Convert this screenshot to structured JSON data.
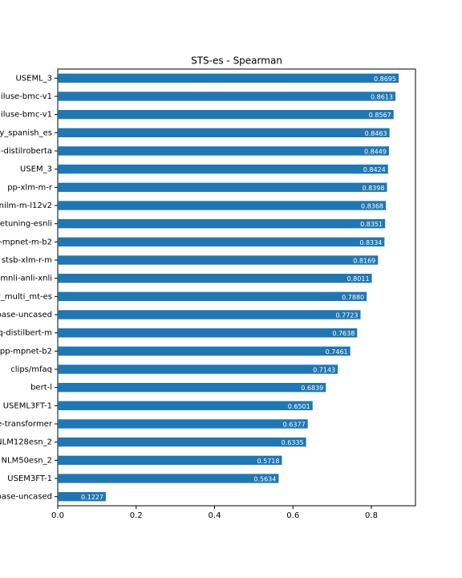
{
  "chart_data": {
    "type": "barh",
    "title": "STS-es - Spearman",
    "categories": [
      "USEML_3",
      "iluse-bmc-v1",
      "iluse-bmc-v1",
      "y_spanish_es",
      "-distilroberta",
      "USEM_3",
      "pp-xlm-m-r",
      "nilm-m-l12v2",
      "etuning-esnli",
      "-mpnet-m-b2",
      "stsb-xlm-r-m",
      "mnli-anli-xnli",
      "y_multi_mt-es",
      "base-uncased",
      "q-distilbert-m",
      "pp-mpnet-b2",
      "clips/mfaq",
      "bert-l",
      "USEML3FT-1",
      "e-transformer",
      "NLM128esn_2",
      "NLM50esn_2",
      "USEM3FT-1",
      "base-uncased"
    ],
    "values": [
      0.8695,
      0.8613,
      0.8567,
      0.8463,
      0.8449,
      0.8424,
      0.8398,
      0.8368,
      0.8351,
      0.8334,
      0.8169,
      0.8011,
      0.788,
      0.7723,
      0.7638,
      0.7461,
      0.7143,
      0.6839,
      0.6501,
      0.6377,
      0.6335,
      0.5718,
      0.5634,
      0.1227
    ],
    "value_labels": [
      "0.8695",
      "0.8613",
      "0.8567",
      "0.8463",
      "0.8449",
      "0.8424",
      "0.8398",
      "0.8368",
      "0.8351",
      "0.8334",
      "0.8169",
      "0.8011",
      "0.7880",
      "0.7723",
      "0.7638",
      "0.7461",
      "0.7143",
      "0.6839",
      "0.6501",
      "0.6377",
      "0.6335",
      "0.5718",
      "0.5634",
      "0.1227"
    ],
    "color": "#1f77b4",
    "xlim": [
      0,
      0.9125
    ],
    "xticks": [
      {
        "value": 0,
        "label": "0.0"
      },
      0.2,
      0.4,
      0.6,
      0.8
    ]
  }
}
